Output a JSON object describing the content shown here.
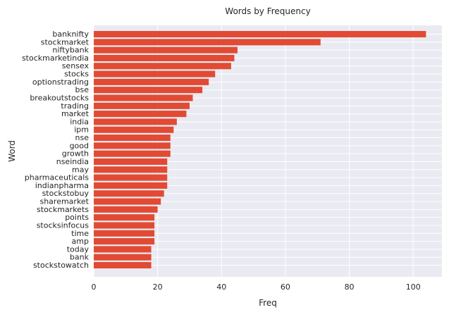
{
  "chart_data": {
    "type": "bar",
    "orientation": "horizontal",
    "title": "Words by Frequency",
    "xlabel": "Freq",
    "ylabel": "Word",
    "xlim": [
      0,
      109
    ],
    "xticks": [
      0,
      20,
      40,
      60,
      80,
      100
    ],
    "grid": true,
    "bar_color": "#e24a33",
    "background_color": "#eaeaf2",
    "categories": [
      "banknifty",
      "stockmarket",
      "niftybank",
      "stockmarketindia",
      "sensex",
      "stocks",
      "optionstrading",
      "bse",
      "breakoutstocks",
      "trading",
      "market",
      "india",
      "ipm",
      "nse",
      "good",
      "growth",
      "nseindia",
      "may",
      "pharmaceuticals",
      "indianpharma",
      "stockstobuy",
      "sharemarket",
      "stockmarkets",
      "points",
      "stocksinfocus",
      "time",
      "amp",
      "today",
      "bank",
      "stockstowatch"
    ],
    "values": [
      104,
      71,
      45,
      44,
      43,
      38,
      36,
      34,
      31,
      30,
      29,
      26,
      25,
      24,
      24,
      24,
      23,
      23,
      23,
      23,
      22,
      21,
      20,
      19,
      19,
      19,
      19,
      18,
      18,
      18
    ]
  }
}
